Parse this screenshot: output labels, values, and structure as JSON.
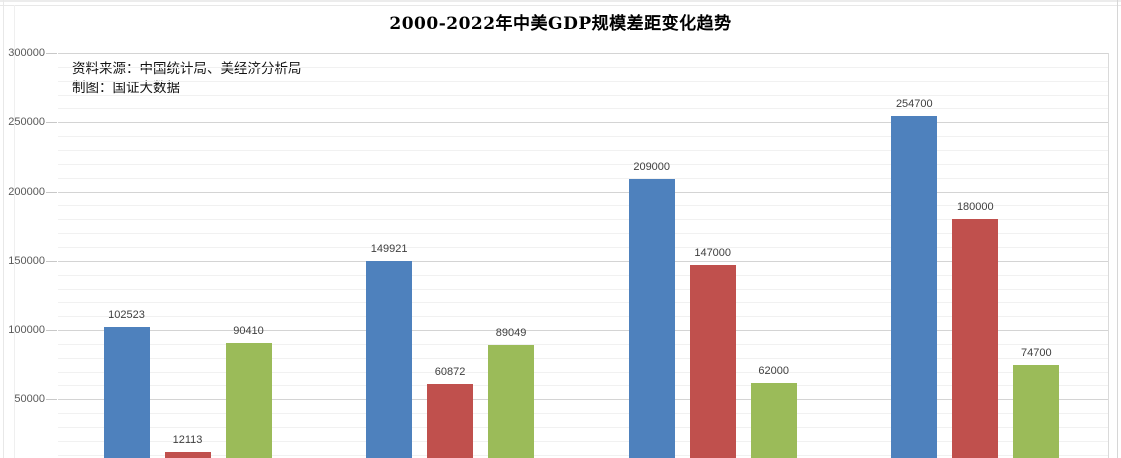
{
  "header": {
    "title": "2000-2022年中美GDP规模差距变化趋势"
  },
  "source_note": {
    "line1": "资料来源：中国统计局、美经济分析局",
    "line2": "制图：国证大数据"
  },
  "chart_data": {
    "type": "bar",
    "title": "2000-2022年中美GDP规模差距变化趋势",
    "xlabel": "",
    "ylabel": "",
    "categories": [
      "",
      "",
      "",
      ""
    ],
    "categories_note": "category axis labels are cut off below the visible image area",
    "series": [
      {
        "name": "series-blue",
        "color": "#4e81bd",
        "values": [
          102523,
          149921,
          209000,
          254700
        ]
      },
      {
        "name": "series-red",
        "color": "#c0504d",
        "values": [
          12113,
          60872,
          147000,
          180000
        ]
      },
      {
        "name": "series-green",
        "color": "#9bbb59",
        "values": [
          90410,
          89049,
          62000,
          74700
        ]
      }
    ],
    "data_labels_visible": true,
    "y_axis": {
      "ticks": [
        50000,
        100000,
        150000,
        200000,
        250000,
        300000
      ],
      "ylim": [
        0,
        300000
      ],
      "minor_unit": 10000,
      "major_unit": 50000
    },
    "grid": "on",
    "legend_position": "none-visible",
    "colors": {
      "major_gridline": "#d4d4d4",
      "minor_gridline": "#f1f1f1",
      "axis_label_text": "#595959",
      "bar_label_text": "#3f3f3f"
    }
  }
}
